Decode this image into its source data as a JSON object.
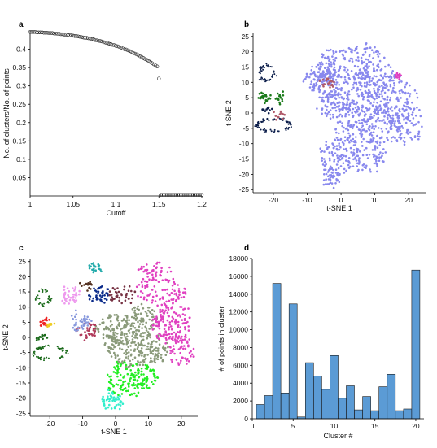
{
  "chart_data": [
    {
      "panel": "a",
      "type": "scatter",
      "xlabel": "Cutoff",
      "ylabel": "No. of clusters/No. of points",
      "xlim": [
        1,
        1.2
      ],
      "ylim": [
        0,
        0.45
      ],
      "xticks": [
        "1",
        "1.05",
        "1.1",
        "1.15",
        "1.2"
      ],
      "yticks": [
        "0.05",
        "0.1",
        "0.15",
        "0.2",
        "0.25",
        "0.3",
        "0.35",
        "0.4"
      ],
      "marker": "open-circle",
      "x": [
        1.0,
        1.002,
        1.004,
        1.006,
        1.008,
        1.01,
        1.012,
        1.014,
        1.016,
        1.018,
        1.02,
        1.022,
        1.024,
        1.026,
        1.028,
        1.03,
        1.032,
        1.034,
        1.036,
        1.038,
        1.04,
        1.042,
        1.044,
        1.046,
        1.048,
        1.05,
        1.052,
        1.054,
        1.056,
        1.058,
        1.06,
        1.062,
        1.064,
        1.066,
        1.068,
        1.07,
        1.072,
        1.074,
        1.076,
        1.078,
        1.08,
        1.082,
        1.084,
        1.086,
        1.088,
        1.09,
        1.092,
        1.094,
        1.096,
        1.098,
        1.1,
        1.102,
        1.104,
        1.106,
        1.108,
        1.11,
        1.112,
        1.114,
        1.116,
        1.118,
        1.12,
        1.122,
        1.124,
        1.126,
        1.128,
        1.13,
        1.132,
        1.134,
        1.136,
        1.138,
        1.14,
        1.142,
        1.144,
        1.146,
        1.148,
        1.15,
        1.152,
        1.154,
        1.156,
        1.158,
        1.16,
        1.162,
        1.164,
        1.166,
        1.168,
        1.17,
        1.172,
        1.174,
        1.176,
        1.178,
        1.18,
        1.182,
        1.184,
        1.186,
        1.188,
        1.19,
        1.192,
        1.194,
        1.196,
        1.198,
        1.2
      ],
      "y": [
        0.447,
        0.447,
        0.447,
        0.447,
        0.446,
        0.446,
        0.446,
        0.446,
        0.445,
        0.445,
        0.445,
        0.444,
        0.444,
        0.444,
        0.443,
        0.443,
        0.442,
        0.442,
        0.441,
        0.441,
        0.44,
        0.44,
        0.439,
        0.438,
        0.438,
        0.437,
        0.436,
        0.436,
        0.435,
        0.434,
        0.433,
        0.432,
        0.431,
        0.431,
        0.43,
        0.429,
        0.428,
        0.427,
        0.425,
        0.424,
        0.423,
        0.422,
        0.421,
        0.419,
        0.418,
        0.417,
        0.415,
        0.414,
        0.412,
        0.411,
        0.409,
        0.408,
        0.406,
        0.404,
        0.402,
        0.4,
        0.399,
        0.397,
        0.395,
        0.393,
        0.39,
        0.388,
        0.386,
        0.384,
        0.381,
        0.379,
        0.376,
        0.373,
        0.371,
        0.368,
        0.365,
        0.362,
        0.359,
        0.356,
        0.353,
        0.32,
        0.003,
        0.003,
        0.003,
        0.003,
        0.003,
        0.003,
        0.003,
        0.003,
        0.003,
        0.003,
        0.003,
        0.003,
        0.003,
        0.003,
        0.003,
        0.003,
        0.003,
        0.003,
        0.003,
        0.003,
        0.003,
        0.003,
        0.003,
        0.003,
        0.003
      ]
    },
    {
      "panel": "b",
      "type": "scatter",
      "xlabel": "t-SNE 1",
      "ylabel": "t-SNE 2",
      "xlim": [
        -26,
        25
      ],
      "ylim": [
        -26,
        26
      ],
      "xticks": [
        "-20",
        "-10",
        "0",
        "10",
        "20"
      ],
      "yticks": [
        "25",
        "20",
        "15",
        "10",
        "5",
        "0",
        "-5",
        "-10",
        "-15",
        "-20",
        "-25"
      ],
      "colors": [
        "#8888ee",
        "#0b1d4a",
        "#1a7a1a",
        "#b05a6a",
        "#e040c0"
      ]
    },
    {
      "panel": "c",
      "type": "scatter",
      "xlabel": "t-SNE 1",
      "ylabel": "t-SNE 2",
      "xlim": [
        -26,
        25
      ],
      "ylim": [
        -26,
        26
      ],
      "xticks": [
        "-20",
        "-10",
        "0",
        "10",
        "20"
      ],
      "yticks": [
        "25",
        "20",
        "15",
        "10",
        "5",
        "0",
        "-5",
        "-10",
        "-15",
        "-20",
        "-25"
      ],
      "colors": [
        "#8a9a7a",
        "#e040c0",
        "#22ee22",
        "#33eecc",
        "#b03a5a",
        "#0a2a8a",
        "#ee99ee",
        "#8899dd",
        "#1a6a1a",
        "#ee2222",
        "#eecc22",
        "#773344",
        "#22aaaa",
        "#553322"
      ]
    },
    {
      "panel": "d",
      "type": "bar",
      "xlabel": "Cluster #",
      "ylabel": "# of points in cluster",
      "xlim": [
        0,
        21
      ],
      "ylim": [
        0,
        18000
      ],
      "xticks": [
        "0",
        "5",
        "10",
        "15",
        "20"
      ],
      "yticks": [
        "0",
        "2000",
        "4000",
        "6000",
        "8000",
        "10000",
        "12000",
        "14000",
        "16000",
        "18000"
      ],
      "color": "#5b9bd5",
      "categories": [
        1,
        2,
        3,
        4,
        5,
        6,
        7,
        8,
        9,
        10,
        11,
        12,
        13,
        14,
        15,
        16,
        17,
        18,
        19,
        20
      ],
      "values": [
        1600,
        2600,
        15200,
        2900,
        12900,
        200,
        6300,
        4800,
        3300,
        7100,
        2300,
        3700,
        1000,
        2500,
        900,
        3600,
        5000,
        900,
        1100,
        16700
      ]
    }
  ]
}
